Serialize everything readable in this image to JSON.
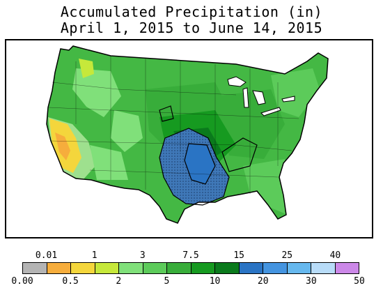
{
  "title_line1": "Accumulated Precipitation (in)",
  "title_line2": "April 1, 2015 to June 14, 2015",
  "legend": {
    "colors": [
      "#b4b4b4",
      "#f6ad3c",
      "#f4d63c",
      "#c6e83a",
      "#80e07a",
      "#5ccb5a",
      "#38ad3a",
      "#169a20",
      "#0a7a1c",
      "#2a74c4",
      "#4494e0",
      "#66b8ee",
      "#b8dcf8",
      "#cc88e8"
    ],
    "top_labels": [
      "0.01",
      "1",
      "3",
      "7.5",
      "15",
      "25",
      "40"
    ],
    "bottom_labels": [
      "0.00",
      "0.5",
      "2",
      "5",
      "10",
      "20",
      "30",
      "50"
    ]
  }
}
